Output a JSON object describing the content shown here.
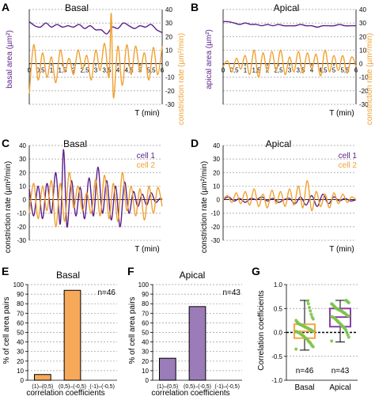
{
  "colors": {
    "purple": "#5b1f8a",
    "orange": "#f0a030",
    "bar_orange": "#f7a95a",
    "bar_purple": "#9b7bb8",
    "dot_green": "#7cc44a",
    "box_orange": "#f3a640",
    "box_purple": "#8b3fa4"
  },
  "chart_data": [
    {
      "id": "A",
      "panel_label": "A",
      "type": "line",
      "title": "Basal",
      "xlabel": "T (min)",
      "ylabel_left": "basal area (µm²)",
      "ylabel_right": "constriction rate (µm²/min)",
      "xlim": [
        0,
        6
      ],
      "ylim": [
        -30,
        40
      ],
      "xticks": [
        0,
        0.5,
        1,
        1.5,
        2,
        2.5,
        3,
        3.5,
        4,
        4.5,
        5,
        5.5,
        6
      ],
      "xticklabels": [
        "0",
        "0,5",
        "1",
        "1,5",
        "2",
        "2,5",
        "3",
        "3,5",
        "4",
        "4,5",
        "5",
        "5,5",
        "6"
      ],
      "yticks": [
        -30,
        -20,
        -10,
        0,
        10,
        20,
        30,
        40
      ],
      "yticklabels": [
        "-30",
        "-20",
        "-10",
        "0",
        "10",
        "20",
        "30",
        "40"
      ],
      "series": [
        {
          "role": "area",
          "color": "#5b1f8a",
          "x": [
            0,
            0.25,
            0.5,
            0.75,
            1,
            1.25,
            1.5,
            1.75,
            2,
            2.25,
            2.5,
            2.75,
            3,
            3.25,
            3.5,
            3.75,
            4,
            4.25,
            4.5,
            4.75,
            5,
            5.25,
            5.5,
            5.75,
            6
          ],
          "y": [
            31,
            28,
            27,
            30,
            27,
            29,
            27,
            28,
            27,
            29,
            26,
            28,
            25,
            25,
            22,
            27,
            26,
            30,
            28,
            26,
            28,
            27,
            29,
            25,
            23
          ]
        },
        {
          "role": "constriction rate",
          "color": "#f0a030",
          "x": [
            0,
            0.2,
            0.4,
            0.6,
            0.8,
            1,
            1.2,
            1.4,
            1.6,
            1.8,
            2,
            2.2,
            2.4,
            2.6,
            2.8,
            3,
            3.2,
            3.4,
            3.6,
            3.7,
            3.8,
            4,
            4.2,
            4.4,
            4.6,
            4.8,
            5,
            5.2,
            5.4,
            5.6,
            5.8,
            6
          ],
          "y": [
            -22,
            14,
            -12,
            8,
            -10,
            5,
            -14,
            10,
            -6,
            4,
            -8,
            10,
            -4,
            6,
            -12,
            10,
            -5,
            15,
            -10,
            37,
            -25,
            13,
            -16,
            14,
            -8,
            13,
            -6,
            8,
            -12,
            12,
            -8,
            13
          ]
        }
      ]
    },
    {
      "id": "B",
      "panel_label": "B",
      "type": "line",
      "title": "Apical",
      "xlabel": "T (min)",
      "ylabel_left": "apical area (µm²)",
      "ylabel_right": "constriction rate (µm²/min)",
      "xlim": [
        0,
        6
      ],
      "ylim": [
        -30,
        40
      ],
      "xticks": [
        0,
        0.5,
        1,
        1.5,
        2,
        2.5,
        3,
        3.5,
        4,
        4.5,
        5,
        5.5,
        6
      ],
      "xticklabels": [
        "0",
        "0,5",
        "1",
        "1,5",
        "2",
        "2,5",
        "3",
        "3,5",
        "4",
        "4,5",
        "5",
        "5,5",
        "6"
      ],
      "yticks": [
        -30,
        -20,
        -10,
        0,
        10,
        20,
        30,
        40
      ],
      "yticklabels": [
        "-30",
        "-20",
        "-10",
        "0",
        "10",
        "20",
        "30",
        "40"
      ],
      "series": [
        {
          "role": "area",
          "color": "#5b1f8a",
          "x": [
            0,
            0.25,
            0.5,
            0.75,
            1,
            1.25,
            1.5,
            1.75,
            2,
            2.25,
            2.5,
            2.75,
            3,
            3.25,
            3.5,
            3.75,
            4,
            4.25,
            4.5,
            4.75,
            5,
            5.25,
            5.5,
            5.75,
            6
          ],
          "y": [
            31,
            31,
            30,
            29,
            30,
            29,
            29,
            28,
            29,
            28,
            29,
            28,
            28,
            28,
            29,
            28,
            28,
            27,
            28,
            28,
            28,
            29,
            28,
            28,
            28
          ]
        },
        {
          "role": "constriction rate",
          "color": "#f0a030",
          "x": [
            0,
            0.2,
            0.4,
            0.6,
            0.8,
            1,
            1.2,
            1.4,
            1.6,
            1.8,
            2,
            2.2,
            2.4,
            2.6,
            2.8,
            3,
            3.2,
            3.4,
            3.6,
            3.8,
            4,
            4.2,
            4.4,
            4.6,
            4.8,
            5,
            5.2,
            5.4,
            5.6,
            5.8,
            6
          ],
          "y": [
            -2,
            2,
            -6,
            4,
            -4,
            6,
            -8,
            10,
            -10,
            8,
            -6,
            9,
            -5,
            10,
            -8,
            5,
            -6,
            9,
            -7,
            8,
            -4,
            7,
            -9,
            10,
            -6,
            6,
            -5,
            6,
            -7,
            5,
            -2
          ]
        }
      ]
    },
    {
      "id": "C",
      "panel_label": "C",
      "type": "line",
      "title": "Basal",
      "xlabel": "T (min)",
      "ylabel": "constriction rate (µm²/min)",
      "xlim": [
        0,
        6
      ],
      "ylim": [
        -30,
        40
      ],
      "yticks": [
        -30,
        -20,
        -10,
        0,
        10,
        20,
        30,
        40
      ],
      "yticklabels": [
        "-30",
        "-20",
        "-10",
        "0",
        "10",
        "20",
        "30",
        "40"
      ],
      "legend": [
        "cell 1",
        "cell 2"
      ],
      "legend_placement": "top-right",
      "series": [
        {
          "name": "cell 1",
          "color": "#5b1f8a",
          "x": [
            0,
            0.2,
            0.4,
            0.6,
            0.8,
            1,
            1.2,
            1.4,
            1.55,
            1.7,
            1.9,
            2.1,
            2.3,
            2.5,
            2.7,
            2.9,
            3.1,
            3.3,
            3.5,
            3.7,
            3.9,
            4.1,
            4.3,
            4.5,
            4.7,
            4.9,
            5.1,
            5.3,
            5.5,
            5.7,
            5.9,
            6
          ],
          "y": [
            8,
            -12,
            10,
            -14,
            12,
            -10,
            20,
            -18,
            37,
            -20,
            14,
            -12,
            9,
            -14,
            16,
            -12,
            24,
            -10,
            14,
            -15,
            10,
            -20,
            13,
            -10,
            6,
            -5,
            4,
            -4,
            5,
            -2,
            1,
            0
          ]
        },
        {
          "name": "cell 2",
          "color": "#f0a030",
          "x": [
            0,
            0.2,
            0.4,
            0.6,
            0.8,
            1,
            1.2,
            1.4,
            1.6,
            1.8,
            2,
            2.2,
            2.4,
            2.6,
            2.8,
            3,
            3.2,
            3.4,
            3.6,
            3.8,
            4,
            4.2,
            4.4,
            4.6,
            4.8,
            5,
            5.2,
            5.4,
            5.6,
            5.8,
            6
          ],
          "y": [
            -10,
            12,
            -14,
            10,
            -8,
            14,
            -20,
            12,
            -16,
            20,
            -6,
            10,
            -8,
            5,
            -10,
            15,
            -12,
            18,
            -14,
            12,
            -16,
            20,
            -8,
            10,
            -12,
            8,
            -15,
            10,
            -10,
            9,
            -5
          ]
        }
      ]
    },
    {
      "id": "D",
      "panel_label": "D",
      "type": "line",
      "title": "Apical",
      "xlabel": "T (min)",
      "ylabel": "constriction rate (µm²/min)",
      "xlim": [
        0,
        6
      ],
      "ylim": [
        -30,
        40
      ],
      "yticks": [
        -30,
        -20,
        -10,
        0,
        10,
        20,
        30,
        40
      ],
      "yticklabels": [
        "-30",
        "-20",
        "-10",
        "0",
        "10",
        "20",
        "30",
        "40"
      ],
      "legend": [
        "cell 1",
        "cell 2"
      ],
      "legend_placement": "top-right",
      "series": [
        {
          "name": "cell 1",
          "color": "#5b1f8a",
          "x": [
            0,
            0.25,
            0.5,
            0.75,
            1,
            1.25,
            1.5,
            1.75,
            2,
            2.25,
            2.5,
            2.75,
            3,
            3.25,
            3.5,
            3.75,
            4,
            4.25,
            4.5,
            4.75,
            5,
            5.25,
            5.5,
            5.75,
            6
          ],
          "y": [
            0,
            2,
            -1,
            1,
            -2,
            1,
            0,
            2,
            -1,
            1,
            -2,
            0,
            1,
            -3,
            2,
            -4,
            3,
            -5,
            4,
            -3,
            2,
            -1,
            1,
            -1,
            0
          ]
        },
        {
          "name": "cell 2",
          "color": "#f0a030",
          "x": [
            0,
            0.2,
            0.4,
            0.6,
            0.8,
            1,
            1.2,
            1.4,
            1.6,
            1.8,
            2,
            2.2,
            2.4,
            2.6,
            2.8,
            3,
            3.2,
            3.4,
            3.6,
            3.8,
            4,
            4.2,
            4.4,
            4.6,
            4.8,
            5,
            5.2,
            5.4,
            5.6,
            5.8,
            6
          ],
          "y": [
            0,
            3,
            -2,
            5,
            -3,
            6,
            -4,
            8,
            -5,
            4,
            -6,
            7,
            -3,
            6,
            -5,
            8,
            -4,
            10,
            -6,
            14,
            -8,
            6,
            -5,
            4,
            -6,
            5,
            -3,
            4,
            -2,
            2,
            0
          ]
        }
      ]
    },
    {
      "id": "E",
      "panel_label": "E",
      "type": "bar",
      "title": "Basal",
      "ylabel": "% of cell area pairs",
      "xlabel": "correlation coefficients",
      "categories": [
        "(1)–(0,5)",
        "(0,5)–(-0,5)",
        "(-1)–(-0,5)"
      ],
      "values": [
        6,
        94,
        0
      ],
      "ylim": [
        0,
        100
      ],
      "yticks": [
        0,
        10,
        20,
        30,
        40,
        50,
        60,
        70,
        80,
        90,
        100
      ],
      "annotation": "n=46",
      "color": "#f7a95a"
    },
    {
      "id": "F",
      "panel_label": "F",
      "type": "bar",
      "title": "Apical",
      "ylabel": "% of cell area pairs",
      "xlabel": "correlation coefficients",
      "categories": [
        "(1)–(0,5)",
        "(0,5)–(-0,5)",
        "(-1)–(-0,5)"
      ],
      "values": [
        23,
        77,
        0
      ],
      "ylim": [
        0,
        100
      ],
      "yticks": [
        0,
        10,
        20,
        30,
        40,
        50,
        60,
        70,
        80,
        90,
        100
      ],
      "annotation": "n=43",
      "color": "#9b7bb8"
    },
    {
      "id": "G",
      "panel_label": "G",
      "type": "scatter",
      "title": "",
      "ylabel": "Correlation coefficients",
      "ylim": [
        -1.0,
        1.0
      ],
      "yticks": [
        -1.0,
        -0.5,
        0.0,
        0.5,
        1.0
      ],
      "yticklabels": [
        "-1.0",
        "-0.5",
        "0.0",
        "0.5",
        "1.0"
      ],
      "categories": [
        "Basal",
        "Apical"
      ],
      "annotations": [
        "n=46",
        "n=43"
      ],
      "boxes": [
        {
          "name": "Basal",
          "color": "#f3a640",
          "min": -0.37,
          "q1": -0.12,
          "median": 0.02,
          "q3": 0.17,
          "max": 0.67
        },
        {
          "name": "Apical",
          "color": "#8b3fa4",
          "min": -0.2,
          "q1": 0.12,
          "median": 0.32,
          "q3": 0.5,
          "max": 0.67
        }
      ],
      "points": [
        [
          -0.35,
          -0.3,
          -0.28,
          -0.25,
          -0.22,
          -0.2,
          -0.18,
          -0.15,
          -0.13,
          -0.12,
          -0.1,
          -0.08,
          -0.06,
          -0.05,
          -0.03,
          -0.02,
          0.0,
          0.0,
          0.01,
          0.02,
          0.02,
          0.03,
          0.05,
          0.06,
          0.07,
          0.08,
          0.09,
          0.1,
          0.11,
          0.12,
          0.13,
          0.14,
          0.15,
          0.16,
          0.17,
          0.18,
          0.2,
          0.22,
          0.25,
          0.28,
          0.32,
          0.38,
          0.45,
          0.52,
          0.6,
          0.66
        ],
        [
          -0.18,
          -0.1,
          -0.05,
          0.0,
          0.05,
          0.08,
          0.1,
          0.12,
          0.14,
          0.16,
          0.18,
          0.2,
          0.22,
          0.24,
          0.26,
          0.28,
          0.3,
          0.31,
          0.32,
          0.33,
          0.34,
          0.35,
          0.36,
          0.38,
          0.4,
          0.41,
          0.42,
          0.44,
          0.45,
          0.46,
          0.47,
          0.48,
          0.49,
          0.5,
          0.52,
          0.54,
          0.56,
          0.58,
          0.6,
          0.62,
          0.64,
          0.66,
          0.67
        ]
      ]
    }
  ]
}
